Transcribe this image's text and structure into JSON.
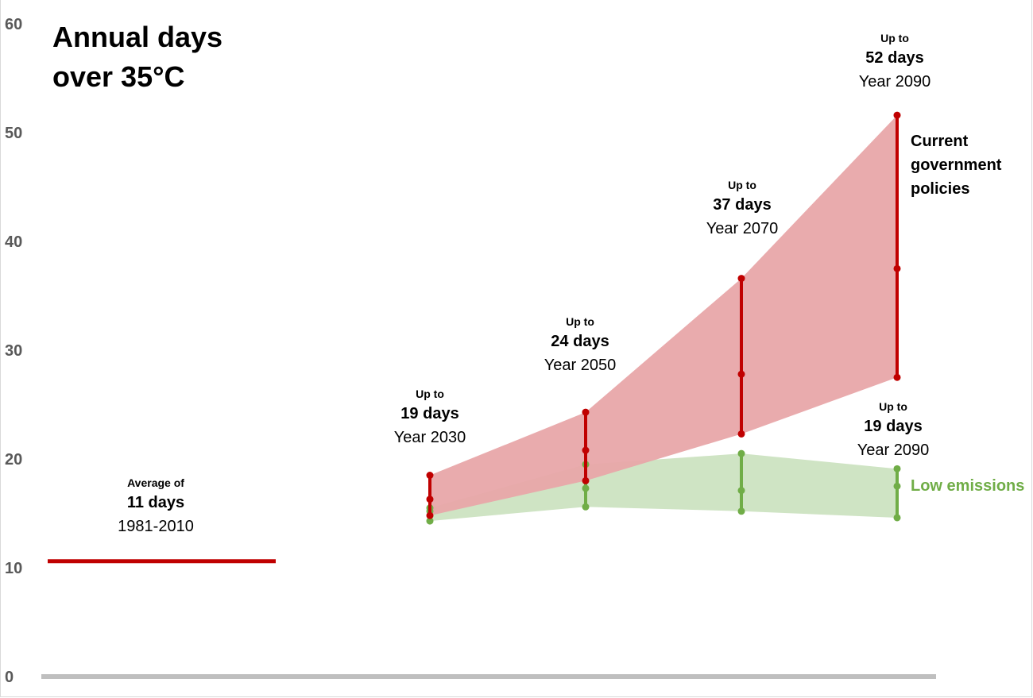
{
  "chart_data": {
    "type": "area",
    "title": "Annual days over 35°C",
    "ylim": [
      0,
      60
    ],
    "yticks": [
      "0",
      "10",
      "20",
      "30",
      "40",
      "50",
      "60"
    ],
    "grid": false,
    "baseline": {
      "value": 10.6,
      "label_top": "Average of",
      "label_main": "11 days",
      "label_period": "1981-2010"
    },
    "x": [
      2030,
      2050,
      2070,
      2090
    ],
    "series": [
      {
        "name": "Current government policies",
        "color": "#c00000",
        "fill": "#e8a7a9",
        "low": [
          14.8,
          18.0,
          22.3,
          27.5
        ],
        "mid": [
          16.3,
          20.8,
          27.8,
          37.5
        ],
        "high": [
          18.5,
          24.3,
          36.6,
          51.6
        ]
      },
      {
        "name": "Low emissions",
        "color": "#70ad47",
        "fill": "#cfe4c4",
        "low": [
          14.3,
          15.6,
          15.2,
          14.6
        ],
        "mid": [
          15.2,
          17.3,
          17.1,
          17.5
        ],
        "high": [
          15.5,
          19.5,
          20.5,
          19.1
        ]
      }
    ],
    "annotations": [
      {
        "top": "Up to",
        "main": "19 days",
        "year": "Year 2030"
      },
      {
        "top": "Up to",
        "main": "24 days",
        "year": "Year 2050"
      },
      {
        "top": "Up to",
        "main": "37 days",
        "year": "Year 2070"
      },
      {
        "top": "Up to",
        "main": "52 days",
        "year": "Year 2090"
      },
      {
        "top": "Up to",
        "main": "19 days",
        "year": "Year 2090"
      }
    ]
  }
}
